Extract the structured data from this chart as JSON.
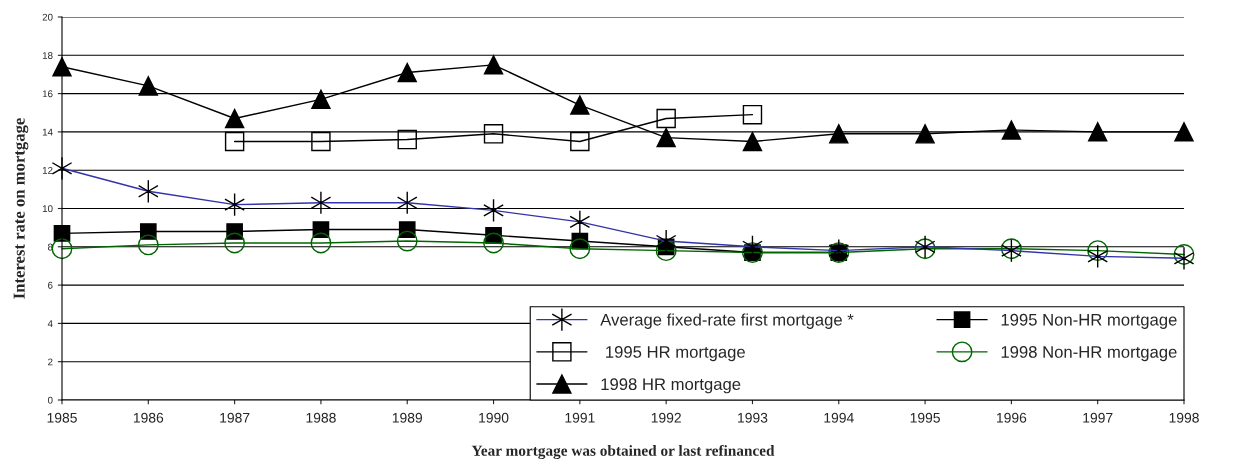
{
  "chart_data": {
    "type": "line",
    "xlabel": "Year mortgage was obtained or last refinanced",
    "ylabel": "Interest rate on mortgage",
    "categories": [
      "1985",
      "1986",
      "1987",
      "1988",
      "1989",
      "1990",
      "1991",
      "1992",
      "1993",
      "1994",
      "1995",
      "1996",
      "1997",
      "1998"
    ],
    "ylim": [
      0,
      20
    ],
    "yticks": [
      0,
      2,
      4,
      6,
      8,
      10,
      12,
      14,
      16,
      18,
      20
    ],
    "grid": "y",
    "legend": "bottom right",
    "series": [
      {
        "name": "Average fixed-rate first mortgage *",
        "color": "#3333aa",
        "marker": "cross",
        "values": [
          12.1,
          10.9,
          10.2,
          10.3,
          10.3,
          9.9,
          9.3,
          8.3,
          8.0,
          7.8,
          8.0,
          7.8,
          7.5,
          7.4
        ]
      },
      {
        "name": "1995 Non-HR mortgage",
        "color": "#000000",
        "marker": "square",
        "values": [
          8.7,
          8.8,
          8.8,
          8.9,
          8.9,
          8.6,
          8.3,
          8.0,
          7.7,
          7.7,
          null,
          null,
          null,
          null
        ]
      },
      {
        "name": " 1995 HR mortgage",
        "color": "#000000",
        "marker": "square_open",
        "values": [
          null,
          null,
          13.5,
          13.5,
          13.6,
          13.9,
          13.5,
          14.7,
          14.9,
          null,
          null,
          null,
          null,
          null
        ]
      },
      {
        "name": "1998 Non-HR mortgage",
        "color": "#006600",
        "marker": "circle_open",
        "values": [
          7.9,
          8.1,
          8.2,
          8.2,
          8.3,
          8.2,
          7.9,
          7.8,
          7.7,
          7.7,
          7.9,
          7.9,
          7.8,
          7.6
        ]
      },
      {
        "name": "1998 HR mortgage",
        "color": "#000000",
        "marker": "triangle",
        "values": [
          17.4,
          16.4,
          14.7,
          15.7,
          17.1,
          17.5,
          15.4,
          13.7,
          13.5,
          13.9,
          13.9,
          14.1,
          14.0,
          14.0
        ]
      }
    ]
  }
}
